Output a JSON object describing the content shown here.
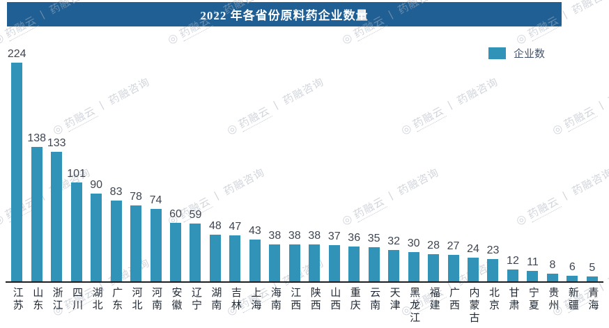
{
  "banner": {
    "title": "2022 年各省份原料药企业数量"
  },
  "legend": {
    "label": "企业数",
    "color": "#3093b7"
  },
  "watermark": {
    "logo": "◎",
    "brand": "药融云",
    "divider": "丨",
    "suffix": "药融咨询"
  },
  "colors": {
    "banner_bg": "#1f5f94",
    "bar": "#3093b7",
    "value_label": "#3e4450",
    "axis_line": "#1b1f24",
    "legend_text": "#44546a"
  },
  "chart_data": {
    "type": "bar",
    "title": "2022 年各省份原料药企业数量",
    "series_name": "企业数",
    "categories": [
      "江苏",
      "山东",
      "浙江",
      "四川",
      "湖北",
      "广东",
      "河北",
      "河南",
      "安徽",
      "辽宁",
      "湖南",
      "吉林",
      "上海",
      "海南",
      "江西",
      "陕西",
      "山西",
      "重庆",
      "云南",
      "天津",
      "黑龙江",
      "福建",
      "广西",
      "内蒙古",
      "北京",
      "甘肃",
      "宁夏",
      "贵州",
      "新疆",
      "青海"
    ],
    "values": [
      224,
      138,
      133,
      101,
      90,
      83,
      78,
      74,
      60,
      59,
      48,
      47,
      43,
      38,
      38,
      38,
      37,
      36,
      35,
      32,
      30,
      28,
      27,
      24,
      23,
      12,
      11,
      8,
      6,
      5
    ],
    "xlabel": "",
    "ylabel": "",
    "ylim": [
      0,
      240
    ],
    "grid": false,
    "legend_position": "top-right",
    "bar_color": "#3093b7",
    "data_labels": true
  }
}
